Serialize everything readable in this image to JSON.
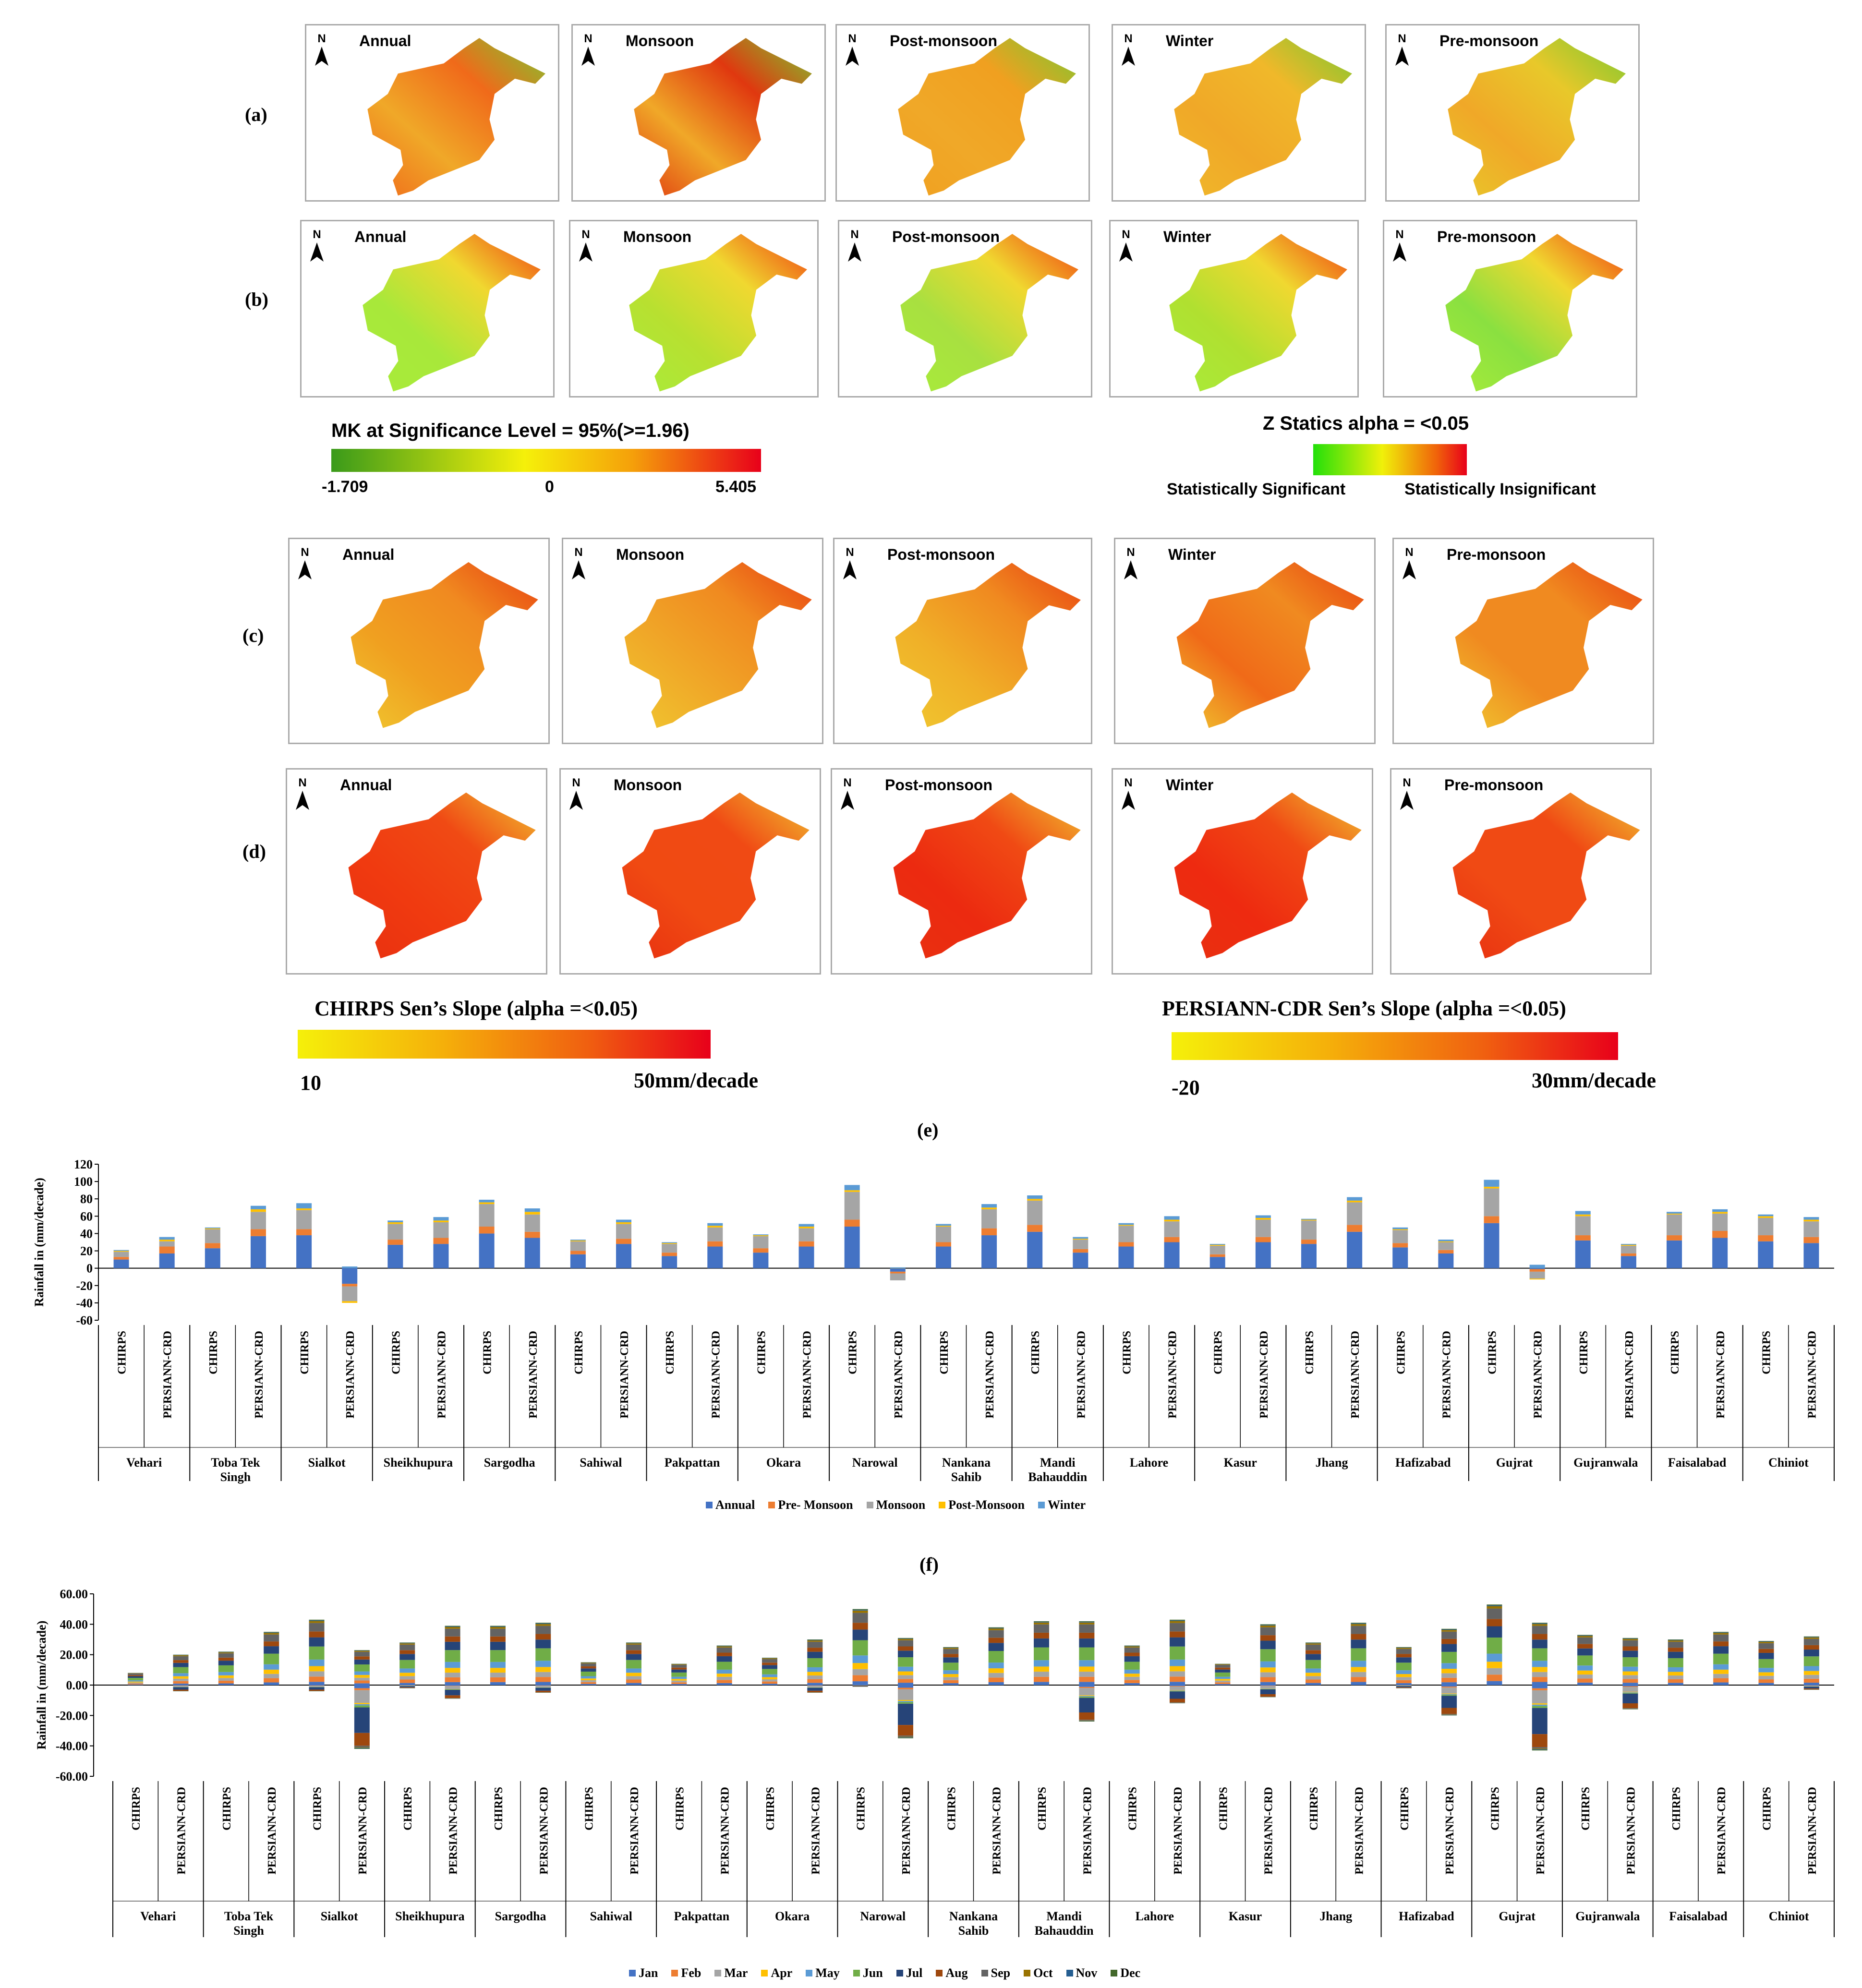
{
  "figure": {
    "map_rows": [
      {
        "id": "a",
        "label": "(a)"
      },
      {
        "id": "b",
        "label": "(b)"
      },
      {
        "id": "c",
        "label": "(c)"
      },
      {
        "id": "d",
        "label": "(d)"
      }
    ],
    "panel_titles": [
      "Annual",
      "Monsoon",
      "Post-monsoon",
      "Winter",
      "Pre-monsoon"
    ],
    "north_label": "N",
    "legend_mk": {
      "title": "MK at Significance Level = 95%(>=1.96)",
      "min": "-1.709",
      "mid": "0",
      "max": "5.405",
      "colors": [
        "#3a9a1a",
        "#f5f00a",
        "#f55a0a",
        "#e8001a"
      ]
    },
    "legend_z": {
      "title": "Z Statics   alpha = <0.05",
      "left_label": "Statistically Significant",
      "right_label": "Statistically Insignificant",
      "colors": [
        "#22e00a",
        "#f0f00a",
        "#f0640a",
        "#e8001a"
      ]
    },
    "legend_chirps": {
      "title": "CHIRPS Sen’s Slope (alpha =<0.05)",
      "min": "10",
      "max": "50mm/decade",
      "colors": [
        "#f5f50a",
        "#f5a00a",
        "#f05010",
        "#e8001a"
      ]
    },
    "legend_persiann": {
      "title": "PERSIANN-CDR Sen’s Slope (alpha =<0.05)",
      "min": "-20",
      "max": "30mm/decade",
      "colors": [
        "#f5f50a",
        "#f5a00a",
        "#f05010",
        "#e8001a"
      ]
    },
    "map_colors": {
      "a": [
        "#f06a1a",
        "#e0380f",
        "#f0a020",
        "#f0b82a",
        "#e8c82a"
      ],
      "b": [
        "#a8e83a",
        "#b8e030",
        "#a8e040",
        "#b0e030",
        "#8ae040"
      ],
      "c": [
        "#f0a020",
        "#f0a828",
        "#f0b028",
        "#f06a18",
        "#f08a20"
      ],
      "d": [
        "#f03a10",
        "#f04a12",
        "#ec2a10",
        "#ee2a10",
        "#f04a14"
      ]
    }
  },
  "chart_data": [
    {
      "type": "bar",
      "panel_label": "(e)",
      "ylabel": "Rainfall in (mm/decade)",
      "ylim": [
        -60,
        120
      ],
      "yticks": [
        "120",
        "100",
        "80",
        "60",
        "40",
        "20",
        "0",
        "-20",
        "-40",
        "-60"
      ],
      "districts": [
        "Vehari",
        "Toba Tek Singh",
        "Sialkot",
        "Sheikhupura",
        "Sargodha",
        "Sahiwal",
        "Pakpattan",
        "Okara",
        "Narowal",
        "Nankana Sahib",
        "Mandi Bahauddin",
        "Lahore",
        "Kasur",
        "Jhang",
        "Hafizabad",
        "Gujrat",
        "Gujranwala",
        "Faisalabad",
        "Chiniot"
      ],
      "categories": [
        "CHIRPS",
        "PERSIANN-CRD"
      ],
      "series_names": [
        "Annual",
        "Pre- Monsoon",
        "Monsoon",
        "Post-Monsoon",
        "Winter"
      ],
      "series_colors": [
        "#4472c4",
        "#ed7d31",
        "#a5a5a5",
        "#ffc000",
        "#5b9bd5"
      ],
      "bars": [
        [
          10,
          3,
          6,
          1,
          1
        ],
        [
          17,
          8,
          6,
          2,
          3
        ],
        [
          23,
          6,
          16,
          1,
          1
        ],
        [
          37,
          8,
          20,
          3,
          4
        ],
        [
          38,
          7,
          22,
          2,
          6
        ],
        [
          -18,
          -3,
          -17,
          -2,
          2
        ],
        [
          27,
          6,
          18,
          2,
          2
        ],
        [
          28,
          7,
          18,
          2,
          4
        ],
        [
          40,
          8,
          26,
          2,
          3
        ],
        [
          35,
          7,
          20,
          3,
          4
        ],
        [
          16,
          4,
          11,
          1,
          1
        ],
        [
          28,
          6,
          17,
          2,
          3
        ],
        [
          14,
          4,
          10,
          1,
          1
        ],
        [
          25,
          6,
          16,
          2,
          3
        ],
        [
          18,
          5,
          14,
          1,
          1
        ],
        [
          25,
          6,
          15,
          2,
          3
        ],
        [
          48,
          8,
          32,
          2,
          6
        ],
        [
          -4,
          -2,
          -8,
          0,
          1
        ],
        [
          25,
          5,
          18,
          1,
          2
        ],
        [
          38,
          8,
          22,
          2,
          4
        ],
        [
          42,
          8,
          28,
          2,
          4
        ],
        [
          18,
          4,
          11,
          1,
          2
        ],
        [
          25,
          5,
          19,
          1,
          2
        ],
        [
          30,
          6,
          18,
          2,
          4
        ],
        [
          13,
          3,
          10,
          1,
          1
        ],
        [
          30,
          6,
          20,
          2,
          3
        ],
        [
          28,
          5,
          22,
          1,
          1
        ],
        [
          42,
          8,
          26,
          2,
          4
        ],
        [
          24,
          5,
          15,
          1,
          2
        ],
        [
          17,
          4,
          9,
          1,
          2
        ],
        [
          52,
          8,
          32,
          2,
          8
        ],
        [
          -1,
          -3,
          -8,
          -1,
          4
        ],
        [
          32,
          6,
          22,
          2,
          4
        ],
        [
          14,
          3,
          9,
          1,
          1
        ],
        [
          32,
          6,
          24,
          1,
          2
        ],
        [
          35,
          8,
          20,
          2,
          3
        ],
        [
          31,
          7,
          20,
          2,
          2
        ],
        [
          29,
          7,
          18,
          2,
          3
        ]
      ]
    },
    {
      "type": "bar",
      "panel_label": "(f)",
      "ylabel": "Rainfall in (mm/decade)",
      "ylim": [
        -60,
        60
      ],
      "yticks": [
        "60.00",
        "40.00",
        "20.00",
        "0.00",
        "-20.00",
        "-40.00",
        "-60.00"
      ],
      "districts": [
        "Vehari",
        "Toba Tek Singh",
        "Sialkot",
        "Sheikhupura",
        "Sargodha",
        "Sahiwal",
        "Pakpattan",
        "Okara",
        "Narowal",
        "Nankana Sahib",
        "Mandi Bahauddin",
        "Lahore",
        "Kasur",
        "Jhang",
        "Hafizabad",
        "Gujrat",
        "Gujranwala",
        "Faisalabad",
        "Chiniot"
      ],
      "categories": [
        "CHIRPS",
        "PERSIANN-CRD"
      ],
      "series_names": [
        "Jan",
        "Feb",
        "Mar",
        "Apr",
        "May",
        "Jun",
        "Jul",
        "Aug",
        "Sep",
        "Oct",
        "Nov",
        "Dec"
      ],
      "series_colors": [
        "#4472c4",
        "#ed7d31",
        "#a5a5a5",
        "#ffc000",
        "#5b9bd5",
        "#70ad47",
        "#264478",
        "#9e480e",
        "#636363",
        "#997300",
        "#255e91",
        "#43682b"
      ],
      "totals": [
        8,
        20,
        22,
        35,
        43,
        23,
        28,
        39,
        39,
        41,
        15,
        28,
        14,
        26,
        18,
        30,
        50,
        31,
        25,
        38,
        42,
        42,
        26,
        43,
        14,
        40,
        28,
        41,
        25,
        37,
        53,
        41,
        33,
        31,
        30,
        35,
        29,
        32
      ],
      "negatives": [
        0,
        -4,
        0,
        0,
        -4,
        -42,
        -2,
        -9,
        0,
        -5,
        0,
        0,
        0,
        0,
        0,
        -5,
        -1,
        -35,
        0,
        0,
        0,
        -24,
        0,
        -12,
        0,
        -8,
        0,
        0,
        -2,
        -20,
        0,
        -43,
        0,
        -16,
        0,
        0,
        0,
        -3
      ]
    }
  ],
  "legends": {
    "e": [
      "Annual",
      "Pre- Monsoon",
      "Monsoon",
      "Post-Monsoon",
      "Winter"
    ],
    "f": [
      "Jan",
      "Feb",
      "Mar",
      "Apr",
      "May",
      "Jun",
      "Jul",
      "Aug",
      "Sep",
      "Oct",
      "Nov",
      "Dec"
    ]
  }
}
